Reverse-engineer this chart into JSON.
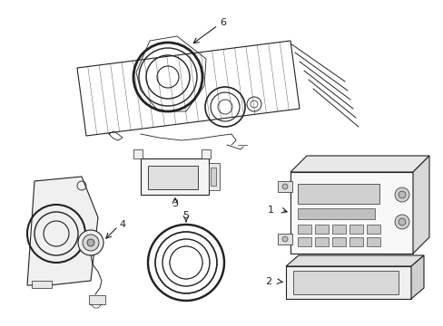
{
  "bg_color": "#ffffff",
  "line_color": "#222222",
  "label_color": "#222222",
  "figsize": [
    4.89,
    3.6
  ],
  "dpi": 100,
  "lw": 0.8
}
